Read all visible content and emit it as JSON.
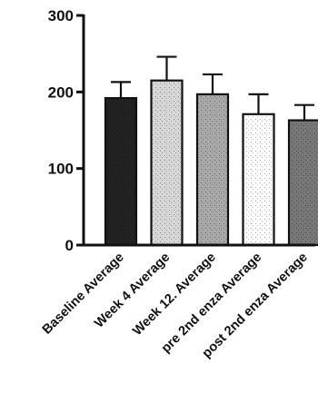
{
  "chart_data": {
    "type": "bar",
    "title": "",
    "xlabel": "",
    "ylabel": "",
    "ylim": [
      0,
      300
    ],
    "yticks": [
      0,
      100,
      200,
      300
    ],
    "grid": false,
    "error_bars": "upper",
    "categories": [
      "Baseline Average",
      "Week 4 Average",
      "Week 12. Average",
      "pre 2nd enza Average",
      "post 2nd enza Average"
    ],
    "values": [
      192,
      215,
      197,
      171,
      163
    ],
    "errors": [
      21,
      31,
      26,
      26,
      20
    ],
    "bar_fills": [
      "#222222",
      "#d6d6d6",
      "#a8a8a8",
      "#ffffff",
      "#777777"
    ]
  }
}
